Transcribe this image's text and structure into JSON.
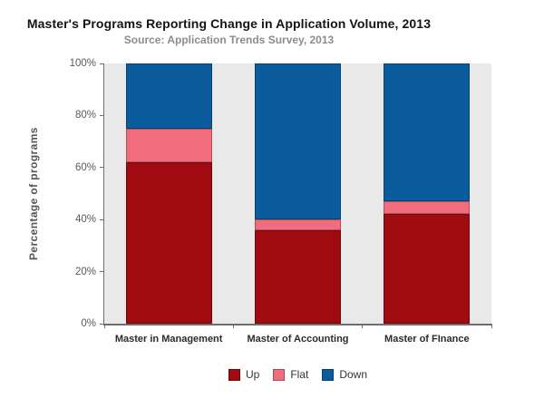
{
  "chart": {
    "title": "Master's Programs Reporting Change in Application Volume, 2013",
    "subtitle": "Source: Application Trends Survey, 2013"
  },
  "colors": {
    "up": "#A00B12",
    "flat": "#F16C7D",
    "down": "#0A5C9C",
    "plot_background": "#E9E9E9",
    "axis": "#6E6E6E"
  },
  "chart_data": {
    "type": "bar",
    "stacked": true,
    "units": "percent",
    "title": "Master's Programs Reporting Change in Application Volume, 2013",
    "subtitle": "Source: Application Trends Survey, 2013",
    "xlabel": "",
    "ylabel": "Percentage of programs",
    "ylim": [
      0,
      100
    ],
    "yticks": [
      "0%",
      "20%",
      "40%",
      "60%",
      "80%",
      "100%"
    ],
    "grid": false,
    "legend_position": "bottom",
    "plot_background": "#E9E9E9",
    "categories": [
      "Master in Management",
      "Master of Accounting",
      "Master of FInance"
    ],
    "series": [
      {
        "name": "Up",
        "color": "#A00B12",
        "values": [
          62,
          36,
          42
        ]
      },
      {
        "name": "Flat",
        "color": "#F16C7D",
        "values": [
          13,
          4,
          5
        ]
      },
      {
        "name": "Down",
        "color": "#0A5C9C",
        "values": [
          25,
          60,
          53
        ]
      }
    ]
  }
}
